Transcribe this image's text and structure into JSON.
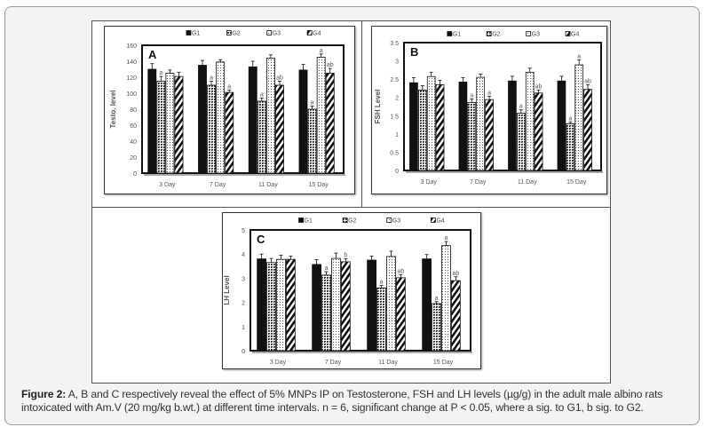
{
  "chart_data": [
    {
      "type": "bar",
      "panel_label": "A",
      "title": "",
      "xlabel": "",
      "ylabel": "Testo. level",
      "ylim": [
        0,
        160
      ],
      "yticks": [
        0,
        20,
        40,
        60,
        80,
        100,
        120,
        140,
        160
      ],
      "grid": false,
      "legend": "top",
      "categories": [
        "3 Day",
        "7 Day",
        "11 Day",
        "15 Day"
      ],
      "series": [
        {
          "name": "G1",
          "values": [
            130,
            135,
            133,
            129
          ],
          "errors": [
            7,
            6,
            7,
            7
          ],
          "sig": [
            "",
            "",
            "",
            ""
          ]
        },
        {
          "name": "G2",
          "values": [
            115,
            110,
            90,
            80
          ],
          "errors": [
            6,
            5,
            4,
            4
          ],
          "sig": [
            "a",
            "a",
            "a",
            "a"
          ]
        },
        {
          "name": "G3",
          "values": [
            125,
            139,
            144,
            145
          ],
          "errors": [
            4,
            3,
            4,
            4
          ],
          "sig": [
            "",
            "",
            "",
            "a"
          ]
        },
        {
          "name": "G4",
          "values": [
            121,
            101,
            110,
            125
          ],
          "errors": [
            5,
            3,
            5,
            6
          ],
          "sig": [
            "",
            "a",
            "ab",
            "ab"
          ]
        }
      ]
    },
    {
      "type": "bar",
      "panel_label": "B",
      "title": "",
      "xlabel": "",
      "ylabel": "FSH Level",
      "ylim": [
        0,
        3.5
      ],
      "yticks": [
        0,
        0.5,
        1,
        1.5,
        2,
        2.5,
        3,
        3.5
      ],
      "grid": false,
      "legend": "top",
      "categories": [
        "3 Day",
        "7 Day",
        "11 Day",
        "15 Day"
      ],
      "series": [
        {
          "name": "G1",
          "values": [
            2.4,
            2.42,
            2.45,
            2.45
          ],
          "errors": [
            0.14,
            0.12,
            0.13,
            0.13
          ],
          "sig": [
            "",
            "",
            "",
            ""
          ]
        },
        {
          "name": "G2",
          "values": [
            2.2,
            1.86,
            1.57,
            1.28
          ],
          "errors": [
            0.12,
            0.1,
            0.09,
            0.05
          ],
          "sig": [
            "",
            "a",
            "a",
            "a"
          ]
        },
        {
          "name": "G3",
          "values": [
            2.57,
            2.55,
            2.69,
            2.89
          ],
          "errors": [
            0.12,
            0.09,
            0.11,
            0.14
          ],
          "sig": [
            "",
            "",
            "",
            "a"
          ]
        },
        {
          "name": "G4",
          "values": [
            2.35,
            1.94,
            2.12,
            2.22
          ],
          "errors": [
            0.12,
            0.09,
            0.08,
            0.13
          ],
          "sig": [
            "",
            "a",
            "ab",
            "ab"
          ]
        }
      ]
    },
    {
      "type": "bar",
      "panel_label": "C",
      "title": "",
      "xlabel": "",
      "ylabel": "LH Level",
      "ylim": [
        0,
        5
      ],
      "yticks": [
        0,
        1,
        2,
        3,
        4,
        5
      ],
      "grid": false,
      "legend": "top",
      "categories": [
        "3 Day",
        "7 Day",
        "11 Day",
        "15 Day"
      ],
      "series": [
        {
          "name": "G1",
          "values": [
            3.8,
            3.57,
            3.75,
            3.8
          ],
          "errors": [
            0.2,
            0.2,
            0.17,
            0.18
          ],
          "sig": [
            "",
            "",
            "",
            ""
          ]
        },
        {
          "name": "G2",
          "values": [
            3.65,
            3.13,
            2.6,
            1.95
          ],
          "errors": [
            0.17,
            0.14,
            0.1,
            0.08
          ],
          "sig": [
            "",
            "a",
            "a",
            "a"
          ]
        },
        {
          "name": "G3",
          "values": [
            3.78,
            3.82,
            3.9,
            4.35
          ],
          "errors": [
            0.17,
            0.22,
            0.22,
            0.17
          ],
          "sig": [
            "",
            "",
            "",
            "a"
          ]
        },
        {
          "name": "G4",
          "values": [
            3.78,
            3.68,
            3.02,
            2.9
          ],
          "errors": [
            0.14,
            0.13,
            0.13,
            0.16
          ],
          "sig": [
            "",
            "b",
            "ab",
            "ab"
          ]
        }
      ]
    }
  ],
  "caption": {
    "label": "Figure 2:",
    "text": " A, B and C respectively reveal the effect of 5% MNPs IP on Testosterone, FSH and LH levels (µg/g) in the adult male albino rats intoxicated with Am.V (20 mg/kg b.wt.) at different time intervals. n = 6, significant change at P < 0.05, where a sig. to G1, b sig. to G2."
  }
}
